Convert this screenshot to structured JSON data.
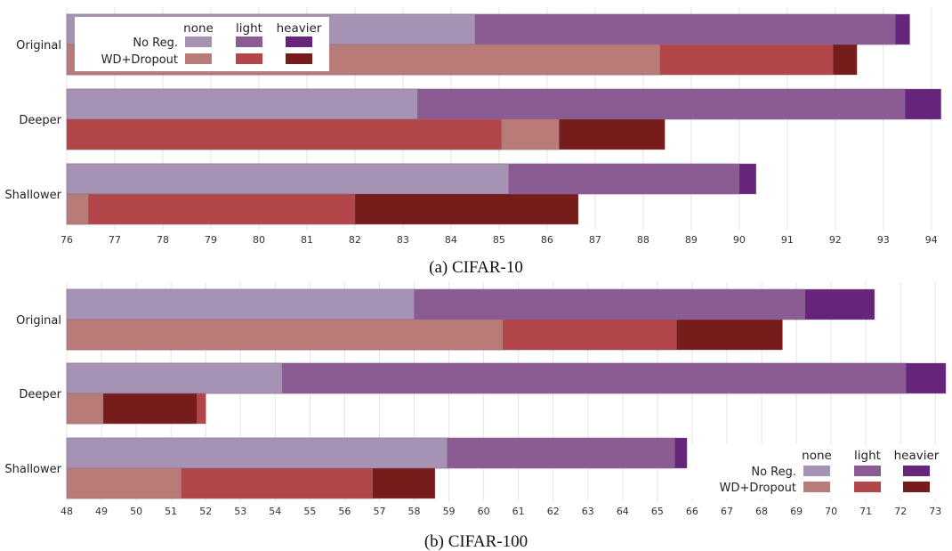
{
  "legend": {
    "columns": [
      "none",
      "light",
      "heavier"
    ],
    "rows": [
      "No Reg.",
      "WD+Dropout"
    ]
  },
  "colors": {
    "No Reg.": {
      "none": "#a693b3",
      "light": "#8b5b93",
      "heavier": "#66247a"
    },
    "WD+Dropout": {
      "none": "#b97b77",
      "light": "#b34648",
      "heavier": "#761c1a"
    }
  },
  "chart_data": [
    {
      "type": "bar",
      "orientation": "horizontal",
      "stacked": "overlapping",
      "caption": "(a) CIFAR-10",
      "categories": [
        "Original",
        "Deeper",
        "Shallower"
      ],
      "xlim": [
        76,
        94.3
      ],
      "xticks": [
        76,
        77,
        78,
        79,
        80,
        81,
        82,
        83,
        84,
        85,
        86,
        87,
        88,
        89,
        90,
        91,
        92,
        93,
        94
      ],
      "legend_position": "top-left",
      "series": [
        {
          "group": "No Reg.",
          "values": [
            {
              "none": 84.5,
              "light": 93.25,
              "heavier": 93.55
            },
            {
              "none": 83.3,
              "light": 93.45,
              "heavier": 94.2
            },
            {
              "none": 85.2,
              "light": 90.0,
              "heavier": 90.35
            }
          ]
        },
        {
          "group": "WD+Dropout",
          "values": [
            {
              "none": 88.35,
              "light": 91.95,
              "heavier": 92.45
            },
            {
              "none": 86.25,
              "light": 85.05,
              "heavier": 88.45
            },
            {
              "none": 76.45,
              "light": 82.0,
              "heavier": 86.65
            }
          ]
        }
      ]
    },
    {
      "type": "bar",
      "orientation": "horizontal",
      "stacked": "overlapping",
      "caption": "(b) CIFAR-100",
      "categories": [
        "Original",
        "Deeper",
        "Shallower"
      ],
      "xlim": [
        48,
        73.3
      ],
      "xticks": [
        48,
        49,
        50,
        51,
        52,
        53,
        54,
        55,
        56,
        57,
        58,
        59,
        60,
        61,
        62,
        63,
        64,
        65,
        66,
        67,
        68,
        69,
        70,
        71,
        72,
        73
      ],
      "legend_position": "bottom-right",
      "series": [
        {
          "group": "No Reg.",
          "values": [
            {
              "none": 58.0,
              "light": 69.25,
              "heavier": 71.25
            },
            {
              "none": 54.2,
              "light": 72.15,
              "heavier": 73.3
            },
            {
              "none": 58.95,
              "light": 65.5,
              "heavier": 65.85
            }
          ]
        },
        {
          "group": "WD+Dropout",
          "values": [
            {
              "none": 60.55,
              "light": 65.55,
              "heavier": 68.6
            },
            {
              "none": 49.05,
              "light": 52.0,
              "heavier": 51.75
            },
            {
              "none": 51.3,
              "light": 56.8,
              "heavier": 58.6
            }
          ]
        }
      ]
    }
  ]
}
